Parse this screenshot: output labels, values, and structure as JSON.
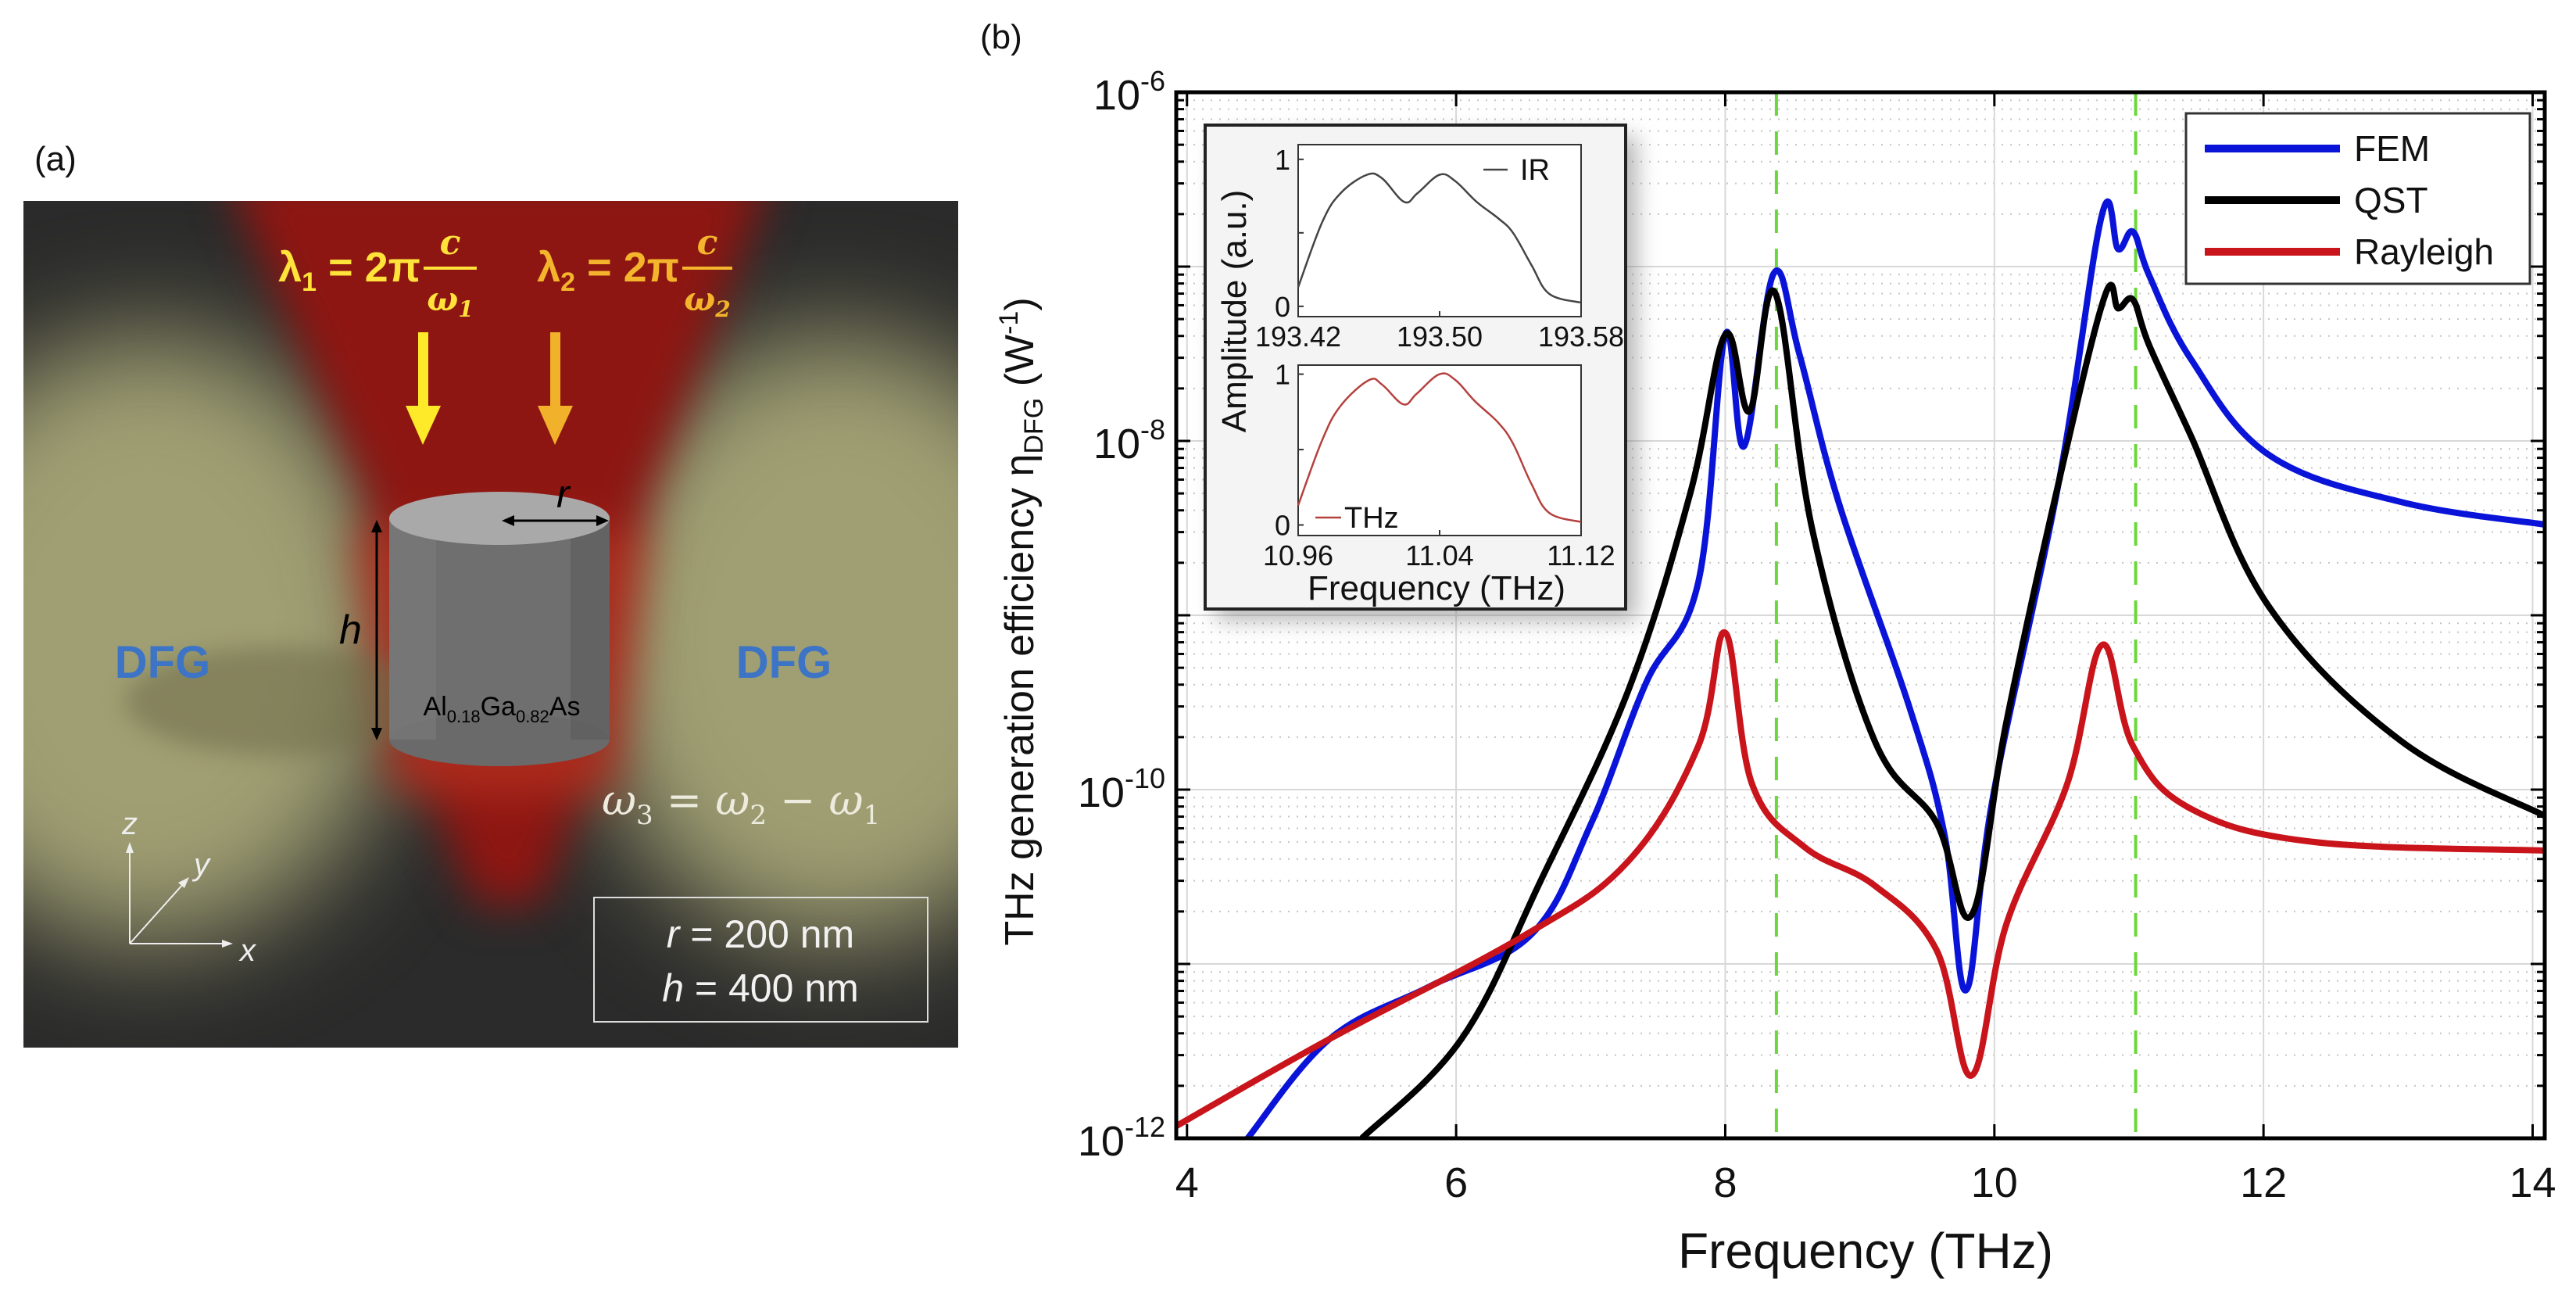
{
  "panel_a": {
    "label": "(a)",
    "lambda1": {
      "symbol": "λ",
      "sub": "1",
      "eq": " = 2π",
      "num": "c",
      "den": "ω",
      "den_sub": "1"
    },
    "lambda2": {
      "symbol": "λ",
      "sub": "2",
      "eq": " = 2π",
      "num": "c",
      "den": "ω",
      "den_sub": "2"
    },
    "radius_label": "r",
    "height_label": "h",
    "material": {
      "el1": "Al",
      "x1": "0.18",
      "el2": "Ga",
      "x2": "0.82",
      "el3": "As"
    },
    "dfg_left": "DFG",
    "dfg_right": "DFG",
    "omega_relation": {
      "w3": "ω",
      "s3": "3",
      "eq": " = ",
      "w2": "ω",
      "s2": "2",
      "minus": " − ",
      "w1": "ω",
      "s1": "1"
    },
    "axes": {
      "z": "z",
      "y": "y",
      "x": "x"
    },
    "params": {
      "r_symbol": "r",
      "r_value": " = 200 nm",
      "h_symbol": "h",
      "h_value": " = 400 nm"
    },
    "colors": {
      "beam": "#9a1a15",
      "glow": "#a7a577",
      "dfg_text": "#3d74c6",
      "lambda1": "#ffe23a",
      "lambda2": "#f4b52c"
    }
  },
  "chart_data": [
    {
      "type": "line",
      "panel_label": "(b)",
      "title": "",
      "xlabel": "Frequency (THz)",
      "ylabel": {
        "main": "THz generation efficiency η",
        "sub": "DFG",
        "unit_open": " (W",
        "unit_exp": "-1",
        "unit_close": ")"
      },
      "xscale": "linear",
      "yscale": "log",
      "xlim": [
        3.92,
        14.09
      ],
      "ylim": [
        1e-12,
        1e-06
      ],
      "xticks": [
        4,
        6,
        8,
        10,
        12,
        14
      ],
      "xtick_labels": [
        "4",
        "6",
        "8",
        "10",
        "12",
        "14"
      ],
      "yticks": [
        {
          "value": 1e-06,
          "base": "10",
          "exp": "-6"
        },
        {
          "value": 1e-08,
          "base": "10",
          "exp": "-8"
        },
        {
          "value": 1e-10,
          "base": "10",
          "exp": "-10"
        },
        {
          "value": 1e-12,
          "base": "10",
          "exp": "-12"
        }
      ],
      "grid": true,
      "legend": {
        "placement": "top-right"
      },
      "vlines": [
        {
          "x": 8.38,
          "style": "dashed",
          "color": "#6ad83a"
        },
        {
          "x": 11.05,
          "style": "dashed",
          "color": "#6ad83a"
        }
      ],
      "series_y_unit": "log10(W^-1)",
      "series": [
        {
          "name": "FEM",
          "color": "#0a14d8",
          "x": [
            4.45,
            5.06,
            5.8,
            6.56,
            7.0,
            7.41,
            7.8,
            8.0,
            8.14,
            8.36,
            8.55,
            8.85,
            9.37,
            9.63,
            9.79,
            9.99,
            10.48,
            10.8,
            10.92,
            11.03,
            11.15,
            11.46,
            12.04,
            13.02,
            14.09
          ],
          "y": [
            -12.0,
            -11.43,
            -11.13,
            -10.83,
            -10.2,
            -9.39,
            -8.81,
            -7.39,
            -8.03,
            -7.04,
            -7.5,
            -8.37,
            -9.53,
            -10.26,
            -11.15,
            -10.04,
            -8.23,
            -6.7,
            -6.9,
            -6.8,
            -7.05,
            -7.53,
            -8.08,
            -8.35,
            -8.48
          ]
        },
        {
          "name": "QST",
          "color": "#000000",
          "x": [
            5.3,
            6.04,
            6.63,
            7.28,
            7.74,
            8.0,
            8.18,
            8.37,
            8.65,
            9.11,
            9.57,
            9.83,
            10.09,
            10.48,
            10.82,
            10.92,
            11.03,
            11.15,
            11.46,
            12.04,
            13.02,
            14.09
          ],
          "y": [
            -12.0,
            -11.43,
            -10.52,
            -9.43,
            -8.3,
            -7.39,
            -7.83,
            -7.15,
            -8.52,
            -9.72,
            -10.19,
            -10.72,
            -9.61,
            -8.23,
            -7.17,
            -7.24,
            -7.19,
            -7.45,
            -7.97,
            -8.95,
            -9.72,
            -10.15
          ]
        },
        {
          "name": "Rayleigh",
          "color": "#c8141a",
          "x": [
            3.92,
            5.06,
            6.5,
            7.28,
            7.8,
            8.0,
            8.2,
            8.59,
            9.11,
            9.57,
            9.83,
            10.09,
            10.54,
            10.8,
            11.03,
            11.46,
            12.37,
            14.09
          ],
          "y": [
            -11.93,
            -11.43,
            -10.84,
            -10.41,
            -9.75,
            -9.1,
            -9.97,
            -10.33,
            -10.55,
            -10.92,
            -11.64,
            -10.77,
            -9.97,
            -9.17,
            -9.75,
            -10.11,
            -10.3,
            -10.35
          ]
        }
      ]
    },
    {
      "type": "line",
      "role": "inset",
      "ylabel": "Amplitude (a.u.)",
      "xlabel": "Frequency (THz)",
      "subplots": [
        {
          "name": "IR",
          "color": "#444444",
          "xlim": [
            193.42,
            193.58
          ],
          "ylim": [
            -0.07,
            1.1
          ],
          "xtick_labels": [
            "193.42",
            "193.50",
            "193.58"
          ],
          "xticks": [
            193.42,
            193.5,
            193.58
          ],
          "ytick_labels": [
            "0",
            "1"
          ],
          "yticks": [
            0,
            1
          ],
          "x": [
            193.42,
            193.4335,
            193.444,
            193.459,
            193.4675,
            193.48,
            193.4875,
            193.5,
            193.509,
            193.521,
            193.533,
            193.5415,
            193.552,
            193.562,
            193.58
          ],
          "y": [
            0.13,
            0.57,
            0.77,
            0.895,
            0.87,
            0.71,
            0.77,
            0.895,
            0.85,
            0.71,
            0.6,
            0.5,
            0.28,
            0.085,
            0.025
          ]
        },
        {
          "name": "THz",
          "color": "#b5413f",
          "xlim": [
            10.96,
            11.12
          ],
          "ylim": [
            -0.07,
            1.06
          ],
          "xtick_labels": [
            "10.96",
            "11.04",
            "11.12"
          ],
          "xticks": [
            10.96,
            11.04,
            11.12
          ],
          "ytick_labels": [
            "0",
            "1"
          ],
          "yticks": [
            0,
            1
          ],
          "x": [
            10.96,
            10.9735,
            10.984,
            11.0,
            11.0075,
            11.0195,
            11.027,
            11.04,
            11.049,
            11.06,
            11.073,
            11.0815,
            11.092,
            11.102,
            11.12
          ],
          "y": [
            0.13,
            0.56,
            0.79,
            0.96,
            0.93,
            0.8,
            0.87,
            1.0,
            0.96,
            0.82,
            0.68,
            0.54,
            0.27,
            0.08,
            0.02
          ]
        }
      ]
    }
  ]
}
